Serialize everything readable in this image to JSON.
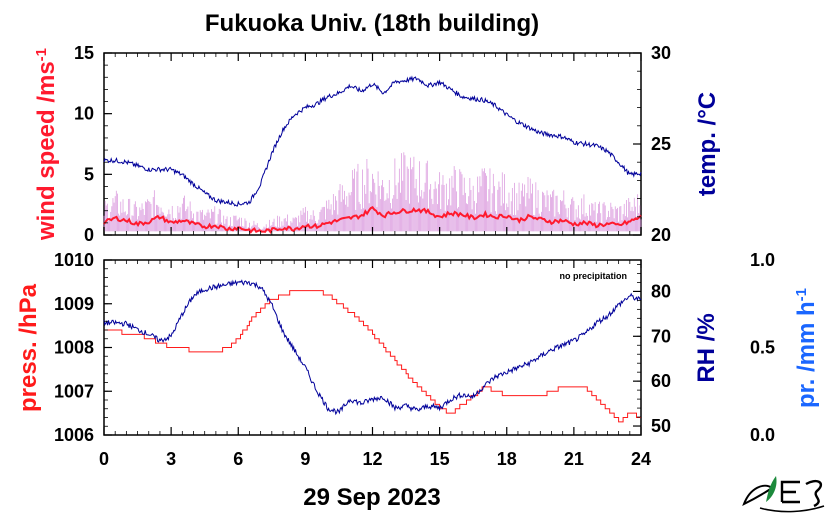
{
  "title": "Fukuoka Univ. (18th building)",
  "date_label": "29 Sep 2023",
  "colors": {
    "wind": "#ff1a2e",
    "wind_gust": "#d488d8",
    "temp": "#00009a",
    "press": "#ff1a1a",
    "rh": "#00009a",
    "precip": "#1a66ff"
  },
  "chart_data": [
    {
      "type": "line",
      "panel": "upper",
      "title": "Fukuoka Univ. (18th building)",
      "xlabel": "29 Sep 2023",
      "x_ticks": [
        "0",
        "3",
        "6",
        "9",
        "12",
        "15",
        "18",
        "21",
        "24"
      ],
      "xlim": [
        0,
        24
      ],
      "left_axis": {
        "label": "wind speed /ms",
        "label_sup": "-1",
        "ylim": [
          0,
          15
        ],
        "ticks": [
          "0",
          "5",
          "10",
          "15"
        ]
      },
      "right_axis": {
        "label": "temp. /°C",
        "ylim": [
          20,
          30
        ],
        "ticks": [
          "20",
          "25",
          "30"
        ]
      },
      "series": [
        {
          "axis": "left",
          "x": [
            0,
            0.5,
            1,
            1.5,
            2,
            2.5,
            3,
            3.5,
            4,
            4.5,
            5,
            5.5,
            6,
            6.5,
            7,
            7.5,
            8,
            8.5,
            9,
            9.5,
            10,
            10.5,
            11,
            11.5,
            12,
            12.5,
            13,
            13.5,
            14,
            14.5,
            15,
            15.5,
            16,
            16.5,
            17,
            17.5,
            18,
            18.5,
            19,
            19.5,
            20,
            20.5,
            21,
            21.5,
            22,
            22.5,
            23,
            23.5,
            24
          ],
          "y": [
            1.0,
            1.4,
            1.2,
            0.9,
            1.1,
            1.5,
            1.0,
            1.2,
            0.9,
            0.7,
            0.8,
            0.5,
            0.6,
            0.4,
            0.3,
            0.4,
            0.6,
            0.5,
            0.8,
            0.7,
            1.0,
            1.2,
            1.4,
            1.6,
            2.2,
            1.6,
            1.9,
            2.0,
            2.1,
            1.9,
            1.5,
            1.8,
            1.7,
            1.4,
            1.7,
            1.5,
            1.6,
            1.2,
            1.5,
            1.3,
            1.1,
            1.2,
            0.9,
            1.0,
            0.8,
            0.9,
            0.8,
            1.1,
            1.5
          ]
        },
        {
          "axis": "left",
          "x": [
            0,
            0.5,
            1,
            1.5,
            2,
            2.5,
            3,
            3.5,
            4,
            4.5,
            5,
            5.5,
            6,
            6.5,
            7,
            7.5,
            8,
            8.5,
            9,
            9.5,
            10,
            10.5,
            11,
            11.5,
            12,
            12.5,
            13,
            13.5,
            14,
            14.5,
            15,
            15.5,
            16,
            16.5,
            17,
            17.5,
            18,
            18.5,
            19,
            19.5,
            20,
            20.5,
            21,
            21.5,
            22,
            22.5,
            23,
            23.5,
            24
          ],
          "y": [
            2.2,
            2.8,
            2.4,
            2.0,
            2.5,
            3.0,
            2.2,
            2.6,
            2.0,
            1.6,
            1.8,
            1.2,
            1.4,
            1.0,
            0.8,
            1.0,
            1.4,
            1.2,
            1.8,
            1.6,
            2.4,
            3.2,
            4.0,
            4.6,
            5.0,
            4.2,
            4.8,
            5.2,
            5.0,
            4.6,
            4.0,
            4.4,
            4.2,
            3.6,
            4.4,
            3.8,
            4.0,
            3.2,
            3.6,
            3.2,
            2.8,
            3.0,
            2.4,
            2.6,
            2.0,
            2.2,
            2.0,
            2.4,
            2.8
          ]
        },
        {
          "axis": "right",
          "x": [
            0,
            0.5,
            1,
            1.5,
            2,
            2.5,
            3,
            3.5,
            4,
            4.5,
            5,
            5.5,
            6,
            6.5,
            7,
            7.5,
            8,
            8.5,
            9,
            9.5,
            10,
            10.5,
            11,
            11.5,
            12,
            12.5,
            13,
            13.5,
            14,
            14.5,
            15,
            15.5,
            16,
            16.5,
            17,
            17.5,
            18,
            18.5,
            19,
            19.5,
            20,
            20.5,
            21,
            21.5,
            22,
            22.5,
            23,
            23.5,
            24
          ],
          "y": [
            24.1,
            24.1,
            24.0,
            23.8,
            23.6,
            23.6,
            23.6,
            23.3,
            22.8,
            22.3,
            21.9,
            21.8,
            21.7,
            21.8,
            22.8,
            24.5,
            25.8,
            26.6,
            27.0,
            27.2,
            27.6,
            27.8,
            28.2,
            27.9,
            28.3,
            27.8,
            28.4,
            28.5,
            28.6,
            28.2,
            28.4,
            28.0,
            27.6,
            27.5,
            27.4,
            27.1,
            26.6,
            26.2,
            25.9,
            25.6,
            25.5,
            25.4,
            25.1,
            25.0,
            24.9,
            24.6,
            24.0,
            23.3,
            23.4
          ]
        }
      ]
    },
    {
      "type": "line",
      "panel": "lower",
      "note": "no precipitation",
      "x_ticks": [
        "0",
        "3",
        "6",
        "9",
        "12",
        "15",
        "18",
        "21",
        "24"
      ],
      "xlim": [
        0,
        24
      ],
      "left_axis": {
        "label": "press. /hPa",
        "ylim": [
          1006,
          1010
        ],
        "ticks": [
          "1006",
          "1007",
          "1008",
          "1009",
          "1010"
        ]
      },
      "right_axis": {
        "label": "RH /%",
        "ylim": [
          48,
          87
        ],
        "ticks": [
          "50",
          "60",
          "70",
          "80"
        ]
      },
      "far_right_axis": {
        "label": "pr. /mm h",
        "label_sup": "-1",
        "ylim": [
          0,
          1
        ],
        "ticks": [
          "0.0",
          "0.5",
          "1.0"
        ]
      },
      "series": [
        {
          "axis": "left",
          "x": [
            0,
            0.5,
            1,
            1.5,
            2,
            2.5,
            3,
            3.5,
            4,
            4.5,
            5,
            5.5,
            6,
            6.5,
            7,
            7.5,
            8,
            8.5,
            9,
            9.5,
            10,
            10.5,
            11,
            11.5,
            12,
            12.5,
            13,
            13.5,
            14,
            14.5,
            15,
            15.5,
            16,
            16.5,
            17,
            17.5,
            18,
            18.5,
            19,
            19.5,
            20,
            20.5,
            21,
            21.5,
            22,
            22.5,
            23,
            23.5,
            24
          ],
          "y": [
            1008.4,
            1008.4,
            1008.3,
            1008.3,
            1008.2,
            1008.1,
            1008.0,
            1008.0,
            1007.9,
            1007.9,
            1007.9,
            1008.0,
            1008.2,
            1008.6,
            1008.9,
            1009.1,
            1009.2,
            1009.3,
            1009.3,
            1009.3,
            1009.2,
            1009.0,
            1008.8,
            1008.6,
            1008.3,
            1008.0,
            1007.7,
            1007.4,
            1007.1,
            1006.9,
            1006.6,
            1006.5,
            1006.7,
            1006.9,
            1007.1,
            1007.0,
            1006.9,
            1006.9,
            1006.9,
            1006.9,
            1007.0,
            1007.1,
            1007.1,
            1007.1,
            1006.8,
            1006.6,
            1006.3,
            1006.5,
            1006.4
          ]
        },
        {
          "axis": "right",
          "x": [
            0,
            0.5,
            1,
            1.5,
            2,
            2.5,
            3,
            3.5,
            4,
            4.5,
            5,
            5.5,
            6,
            6.5,
            7,
            7.5,
            8,
            8.5,
            9,
            9.5,
            10,
            10.5,
            11,
            11.5,
            12,
            12.5,
            13,
            13.5,
            14,
            14.5,
            15,
            15.5,
            16,
            16.5,
            17,
            17.5,
            18,
            18.5,
            19,
            19.5,
            20,
            20.5,
            21,
            21.5,
            22,
            22.5,
            23,
            23.5,
            24
          ],
          "y": [
            73.0,
            73.0,
            72.8,
            71.5,
            70.5,
            69.0,
            70.0,
            75.0,
            79.0,
            80.5,
            81.0,
            81.5,
            82.0,
            82.0,
            81.0,
            77.0,
            71.0,
            67.0,
            63.0,
            58.0,
            54.0,
            53.0,
            56.0,
            55.0,
            56.0,
            56.5,
            54.0,
            54.5,
            53.5,
            54.5,
            54.0,
            56.0,
            57.0,
            56.5,
            59.0,
            61.0,
            62.0,
            63.0,
            64.0,
            65.5,
            67.0,
            68.0,
            69.0,
            70.5,
            73.0,
            74.5,
            77.0,
            79.0,
            78.0
          ]
        }
      ]
    }
  ]
}
